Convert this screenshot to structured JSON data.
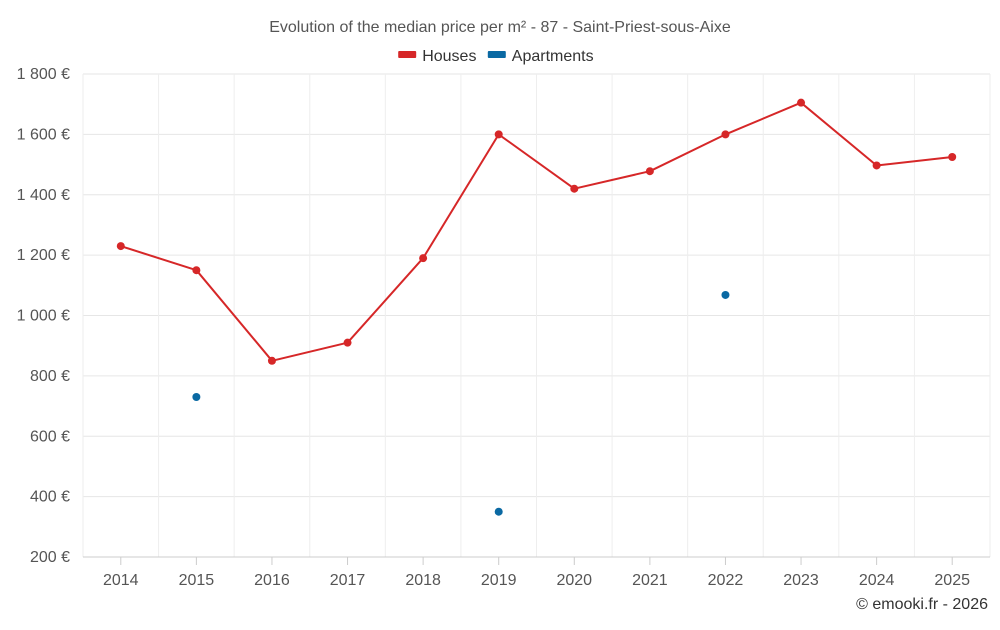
{
  "chart_data": {
    "type": "line",
    "title": "Evolution of the median price per m² - 87 - Saint-Priest-sous-Aixe",
    "xlabel": "",
    "ylabel": "",
    "categories": [
      "2014",
      "2015",
      "2016",
      "2017",
      "2018",
      "2019",
      "2020",
      "2021",
      "2022",
      "2023",
      "2024",
      "2025"
    ],
    "ylim": [
      200,
      1800
    ],
    "yticks": [
      200,
      400,
      600,
      800,
      1000,
      1200,
      1400,
      1600,
      1800
    ],
    "ytick_labels": [
      "200 €",
      "400 €",
      "600 €",
      "800 €",
      "1 000 €",
      "1 200 €",
      "1 400 €",
      "1 600 €",
      "1 800 €"
    ],
    "grid": true,
    "legend_position": "top-center",
    "series": [
      {
        "name": "Houses",
        "color": "#d62728",
        "style": "line-with-markers",
        "values": [
          1230,
          1150,
          850,
          910,
          1190,
          1600,
          1420,
          1478,
          1600,
          1705,
          1497,
          1525
        ]
      },
      {
        "name": "Apartments",
        "color": "#0a69a3",
        "style": "markers-only",
        "values": [
          null,
          730,
          null,
          null,
          null,
          350,
          null,
          null,
          1068,
          null,
          null,
          null
        ]
      }
    ]
  },
  "credit": "© emooki.fr - 2026"
}
